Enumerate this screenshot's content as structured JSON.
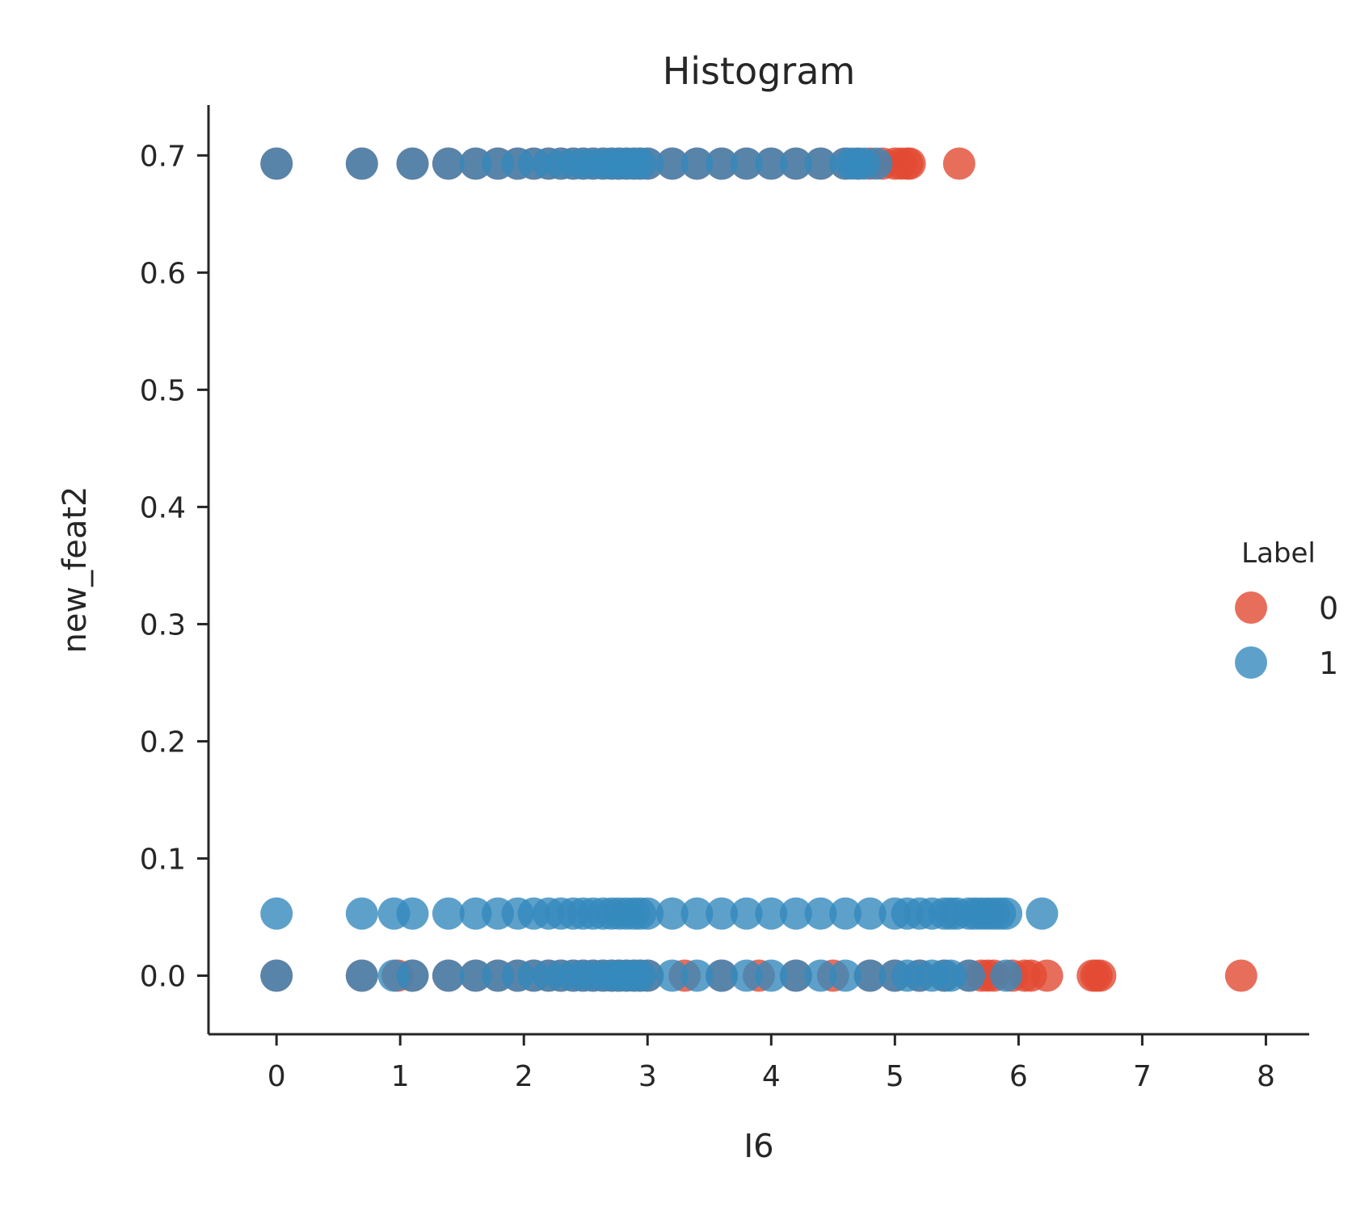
{
  "chart_data": {
    "type": "scatter",
    "title": "Histogram",
    "xlabel": "I6",
    "ylabel": "new_feat2",
    "xlim": [
      -0.55,
      8.35
    ],
    "ylim": [
      -0.05,
      0.743
    ],
    "x_ticks": [
      0,
      1,
      2,
      3,
      4,
      5,
      6,
      7,
      8
    ],
    "x_tick_labels": [
      "0",
      "1",
      "2",
      "3",
      "4",
      "5",
      "6",
      "7",
      "8"
    ],
    "y_ticks": [
      0.0,
      0.1,
      0.2,
      0.3,
      0.4,
      0.5,
      0.6,
      0.7
    ],
    "y_tick_labels": [
      "0.0",
      "0.1",
      "0.2",
      "0.3",
      "0.4",
      "0.5",
      "0.6",
      "0.7"
    ],
    "grid": false,
    "legend": {
      "title": "Label",
      "placement": "right"
    },
    "series": [
      {
        "name": "0",
        "color": "#e24a33",
        "points": [
          {
            "y": 0.693,
            "x": [
              0.0,
              0.69,
              1.1,
              1.39,
              1.61,
              1.79,
              1.95,
              2.08,
              2.2,
              2.3,
              2.4,
              2.48,
              2.56,
              2.64,
              2.71,
              2.77,
              2.83,
              2.89,
              2.94,
              3.0,
              3.2,
              3.4,
              3.6,
              3.8,
              4.0,
              4.2,
              4.4,
              4.6,
              4.7,
              4.8,
              4.9,
              5.0,
              5.05,
              5.1,
              5.12,
              5.52
            ]
          },
          {
            "y": 0.0,
            "x": [
              0.0,
              0.69,
              0.98,
              1.1,
              1.39,
              1.61,
              1.79,
              1.95,
              2.08,
              2.2,
              2.3,
              2.4,
              2.48,
              2.56,
              2.64,
              2.71,
              2.77,
              2.83,
              2.89,
              2.94,
              3.0,
              3.3,
              3.6,
              3.9,
              4.2,
              4.5,
              4.8,
              5.0,
              5.2,
              5.4,
              5.6,
              5.7,
              5.75,
              5.8,
              5.95,
              6.05,
              6.1,
              6.23,
              6.6,
              6.63,
              6.66,
              7.8
            ]
          }
        ]
      },
      {
        "name": "1",
        "color": "#348abd",
        "points": [
          {
            "y": 0.693,
            "x": [
              0.0,
              0.69,
              1.1,
              1.39,
              1.61,
              1.79,
              1.95,
              2.08,
              2.2,
              2.3,
              2.4,
              2.48,
              2.56,
              2.64,
              2.71,
              2.77,
              2.83,
              2.89,
              2.94,
              3.0,
              3.2,
              3.4,
              3.6,
              3.8,
              4.0,
              4.2,
              4.4,
              4.6,
              4.65,
              4.7,
              4.75,
              4.85
            ]
          },
          {
            "y": 0.053,
            "x": [
              0.0,
              0.69,
              0.95,
              1.1,
              1.39,
              1.61,
              1.79,
              1.95,
              2.08,
              2.2,
              2.3,
              2.4,
              2.48,
              2.56,
              2.64,
              2.71,
              2.77,
              2.83,
              2.89,
              2.94,
              3.0,
              3.2,
              3.4,
              3.6,
              3.8,
              4.0,
              4.2,
              4.4,
              4.6,
              4.8,
              5.0,
              5.1,
              5.2,
              5.3,
              5.4,
              5.45,
              5.5,
              5.6,
              5.65,
              5.7,
              5.75,
              5.8,
              5.85,
              5.9,
              6.19
            ]
          },
          {
            "y": 0.0,
            "x": [
              0.0,
              0.69,
              0.95,
              1.1,
              1.39,
              1.61,
              1.79,
              1.95,
              2.08,
              2.2,
              2.3,
              2.4,
              2.48,
              2.56,
              2.64,
              2.71,
              2.77,
              2.83,
              2.89,
              2.94,
              3.0,
              3.2,
              3.4,
              3.6,
              3.8,
              4.0,
              4.2,
              4.4,
              4.6,
              4.8,
              5.0,
              5.1,
              5.2,
              5.3,
              5.4,
              5.45,
              5.6,
              5.9
            ]
          }
        ]
      }
    ]
  }
}
